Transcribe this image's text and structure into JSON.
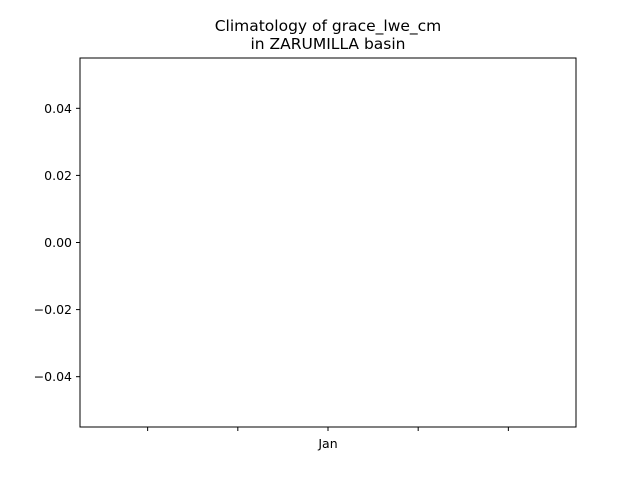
{
  "chart_data": {
    "type": "line",
    "title_lines": [
      "Climatology of grace_lwe_cm",
      "in ZARUMILLA basin"
    ],
    "xlabel": "",
    "ylabel": "",
    "x_ticks": [
      {
        "value": -2,
        "label": ""
      },
      {
        "value": -1,
        "label": ""
      },
      {
        "value": 0,
        "label": "Jan"
      },
      {
        "value": 1,
        "label": ""
      },
      {
        "value": 2,
        "label": ""
      }
    ],
    "xlim": [
      -2.75,
      2.75
    ],
    "y_ticks": [
      {
        "value": 0.04,
        "label": "0.04"
      },
      {
        "value": 0.02,
        "label": "0.02"
      },
      {
        "value": 0.0,
        "label": "0.00"
      },
      {
        "value": -0.02,
        "label": "−0.02"
      },
      {
        "value": -0.04,
        "label": "−0.04"
      }
    ],
    "ylim": [
      -0.055,
      0.055
    ],
    "grid": false,
    "series": []
  }
}
